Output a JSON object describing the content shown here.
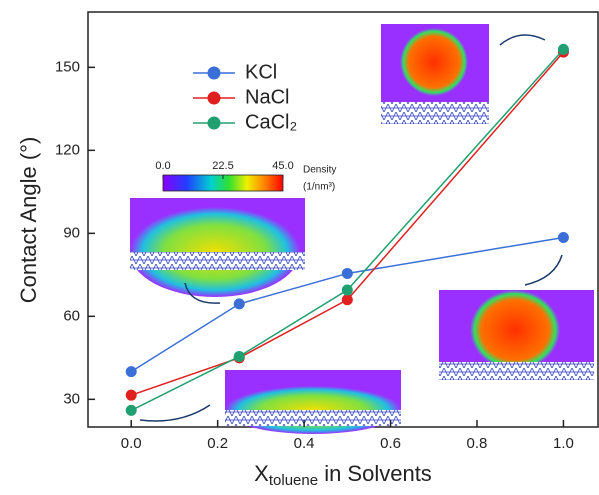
{
  "chart_data": {
    "type": "line",
    "x_label": {
      "main": "X",
      "sub": "toluene",
      "rest": " in Solvents"
    },
    "y_label": "Contact Angle (°)",
    "x": [
      0.0,
      0.25,
      0.5,
      1.0
    ],
    "series": [
      {
        "name": "KCl",
        "color": "#3a6fd8",
        "values": [
          40,
          64.5,
          75.5,
          88.5
        ]
      },
      {
        "name": "NaCl",
        "color": "#e02020",
        "values": [
          31.5,
          45,
          66,
          155.5
        ]
      },
      {
        "name": "CaCl₂",
        "color": "#20a070",
        "values": [
          26,
          45.5,
          69.5,
          156.5
        ]
      }
    ],
    "xlim": [
      -0.1,
      1.08
    ],
    "xticks": [
      {
        "value": 0,
        "label": "0.0"
      },
      {
        "value": 0.2,
        "label": "0.2"
      },
      {
        "value": 0.4,
        "label": "0.4"
      },
      {
        "value": 0.6,
        "label": "0.6"
      },
      {
        "value": 0.8,
        "label": "0.8"
      },
      {
        "value": 1,
        "label": "1.0"
      }
    ],
    "ylim": [
      20,
      170
    ],
    "yticks": [
      30,
      60,
      90,
      120,
      150
    ],
    "colorbar": {
      "title": "Density",
      "unit": "(1/nm³)",
      "lim": [
        0,
        45
      ],
      "ticks": [
        {
          "value": 0,
          "label": "0.0"
        },
        {
          "value": 22.5,
          "label": "22.5"
        },
        {
          "value": 45,
          "label": "45.0"
        }
      ]
    }
  }
}
